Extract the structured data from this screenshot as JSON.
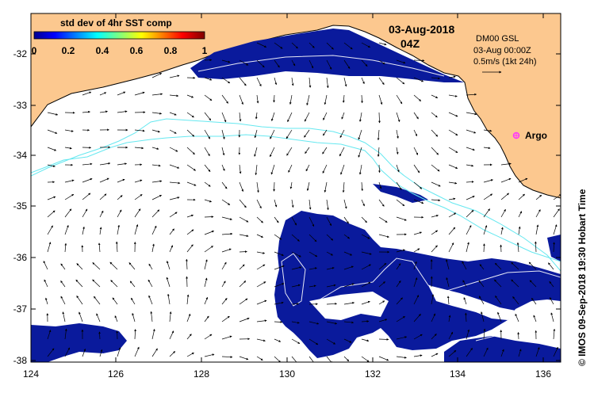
{
  "map": {
    "date": "03-Aug-2018",
    "time": "04Z",
    "model": "DM00 GSL",
    "model_time": "03-Aug 00:00Z",
    "scale_label": "0.5m/s (1kt 24h)",
    "credit": "© IMOS 09-Sep-2018 19:30 Hobart Time",
    "marker_label": "Argo",
    "marker_color": "#ff33ff",
    "land_color": "#fcc88f",
    "sea_color": "#ffffff",
    "data_color": "#0a1a9c",
    "contour_color": "#66e8f0"
  },
  "colorbar": {
    "title": "std dev of 4hr SST comp",
    "ticks": [
      "0",
      "0.2",
      "0.4",
      "0.6",
      "0.8",
      "1"
    ]
  },
  "axes": {
    "x_ticks": [
      "124",
      "126",
      "128",
      "130",
      "132",
      "134",
      "136"
    ],
    "y_ticks": [
      "-32",
      "-33",
      "-34",
      "-35",
      "-36",
      "-37",
      "-38"
    ]
  }
}
